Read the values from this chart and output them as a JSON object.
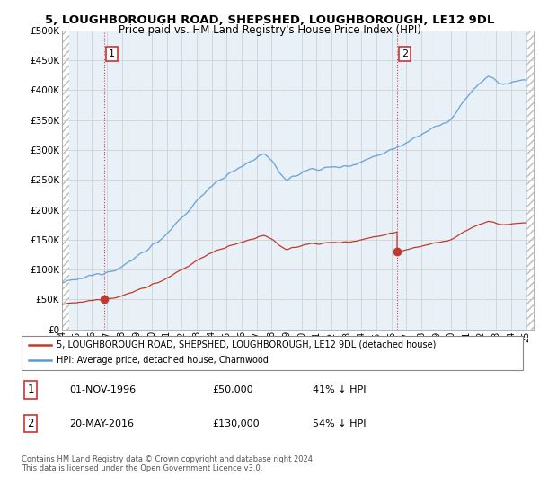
{
  "title": "5, LOUGHBOROUGH ROAD, SHEPSHED, LOUGHBOROUGH, LE12 9DL",
  "subtitle": "Price paid vs. HM Land Registry's House Price Index (HPI)",
  "hpi_color": "#5b9bd5",
  "price_color": "#c0392b",
  "marker_color": "#c0392b",
  "bg_fill_color": "#ddeeff",
  "hatch_left_color": "#cccccc",
  "hatch_right_color": "#cccccc",
  "grid_color": "#cccccc",
  "ylim": [
    0,
    500000
  ],
  "yticks": [
    0,
    50000,
    100000,
    150000,
    200000,
    250000,
    300000,
    350000,
    400000,
    450000,
    500000
  ],
  "ytick_labels": [
    "£0",
    "£50K",
    "£100K",
    "£150K",
    "£200K",
    "£250K",
    "£300K",
    "£350K",
    "£400K",
    "£450K",
    "£500K"
  ],
  "legend_line1": "5, LOUGHBOROUGH ROAD, SHEPSHED, LOUGHBOROUGH, LE12 9DL (detached house)",
  "legend_line2": "HPI: Average price, detached house, Charnwood",
  "annotation1_label": "1",
  "annotation1_date": "01-NOV-1996",
  "annotation1_price": "£50,000",
  "annotation1_hpi": "41% ↓ HPI",
  "annotation2_label": "2",
  "annotation2_date": "20-MAY-2016",
  "annotation2_price": "£130,000",
  "annotation2_hpi": "54% ↓ HPI",
  "footnote": "Contains HM Land Registry data © Crown copyright and database right 2024.\nThis data is licensed under the Open Government Licence v3.0.",
  "sale1_x": 1996.833,
  "sale1_y": 50000,
  "sale2_x": 2016.38,
  "sale2_y": 130000,
  "xlim_left": 1994.0,
  "xlim_right": 2025.5
}
